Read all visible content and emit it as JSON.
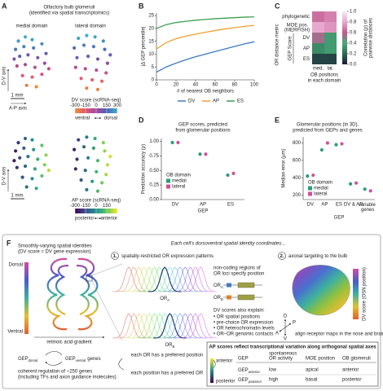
{
  "chart_data": [
    {
      "type": "scatter",
      "panel": "A",
      "panel_title": [
        "Olfactory bulb glomeruli",
        "(identified via spatial transcriptomics)"
      ],
      "title": "medial domain",
      "ylabel": "D-V axis",
      "xlabel": "A-P axis",
      "scale_label": "1 mm",
      "x": [
        0.5,
        1.0,
        1.5,
        0.3,
        0.9,
        1.6,
        2.2,
        0.6,
        1.2,
        1.9,
        2.5,
        0.4,
        1.0,
        1.7,
        2.4,
        0.8,
        1.5,
        2.2,
        1.1,
        1.8,
        2.7,
        0.2
      ],
      "y": [
        3.8,
        4.1,
        3.9,
        3.2,
        3.4,
        3.3,
        3.6,
        2.7,
        2.8,
        2.6,
        2.9,
        2.0,
        2.1,
        1.9,
        2.2,
        1.3,
        1.2,
        1.4,
        0.6,
        0.5,
        1.8,
        2.5
      ],
      "values": [
        260,
        290,
        270,
        190,
        210,
        200,
        230,
        120,
        100,
        70,
        110,
        -20,
        0,
        -50,
        20,
        -150,
        -180,
        -120,
        -250,
        -280,
        -60,
        60
      ]
    },
    {
      "type": "scatter",
      "title": "lateral domain",
      "x": [
        0.6,
        1.2,
        1.8,
        2.4,
        0.3,
        1.0,
        1.7,
        2.5,
        2.9,
        0.5,
        1.3,
        2.0,
        2.7,
        0.4,
        1.1,
        1.9,
        2.6,
        0.8,
        1.6,
        2.3,
        1.2,
        2.0
      ],
      "y": [
        4.0,
        4.2,
        4.1,
        3.8,
        3.3,
        3.5,
        3.4,
        3.2,
        2.8,
        2.6,
        2.7,
        2.5,
        2.2,
        1.9,
        1.8,
        1.7,
        1.5,
        1.1,
        1.0,
        0.9,
        0.4,
        0.3
      ],
      "values": [
        280,
        300,
        270,
        240,
        180,
        200,
        190,
        170,
        120,
        100,
        90,
        70,
        30,
        -30,
        -40,
        -60,
        -90,
        -160,
        -170,
        -190,
        -260,
        -270
      ],
      "colorbar": {
        "label": "DV score (scRNA-seq)",
        "lim": [
          -300,
          300
        ],
        "ticks": [
          -300,
          -150,
          0,
          150,
          300
        ],
        "colors": [
          "#f28e2b",
          "#e15779",
          "#a34a9e",
          "#4f63b8",
          "#3fb0c8"
        ],
        "low_label": "ventral",
        "high_label": "dorsal"
      }
    },
    {
      "type": "scatter",
      "ylabel": "D-V axis",
      "scale_label": "1 mm",
      "x": [
        0.5,
        1.0,
        1.5,
        0.3,
        0.9,
        1.6,
        2.2,
        0.6,
        1.2,
        1.9,
        2.5,
        0.4,
        1.0,
        1.7,
        2.4,
        0.8,
        1.5,
        2.2,
        1.1,
        1.8,
        2.7,
        0.2
      ],
      "y": [
        3.7,
        4.0,
        3.9,
        3.1,
        3.3,
        3.2,
        3.5,
        2.6,
        2.7,
        2.5,
        2.8,
        1.9,
        2.0,
        1.8,
        2.1,
        1.2,
        1.1,
        1.3,
        0.5,
        0.4,
        1.7,
        2.4
      ],
      "values": [
        -200,
        -100,
        0,
        -240,
        -120,
        20,
        140,
        -180,
        -60,
        80,
        200,
        -220,
        -100,
        40,
        180,
        -140,
        0,
        140,
        -80,
        60,
        240,
        -260
      ]
    },
    {
      "type": "scatter",
      "x": [
        0.6,
        1.2,
        1.8,
        2.4,
        0.3,
        1.0,
        1.7,
        2.5,
        2.9,
        0.5,
        1.3,
        2.0,
        2.7,
        0.4,
        1.1,
        1.9,
        2.6,
        0.8,
        1.6,
        2.3,
        1.2,
        2.0
      ],
      "y": [
        3.9,
        4.1,
        4.0,
        3.7,
        3.2,
        3.4,
        3.3,
        3.1,
        2.7,
        2.5,
        2.6,
        2.4,
        2.1,
        1.8,
        1.7,
        1.6,
        1.4,
        1.0,
        0.9,
        0.8,
        0.3,
        0.2
      ],
      "values": [
        -180,
        -60,
        60,
        180,
        -240,
        -100,
        40,
        200,
        260,
        -200,
        -40,
        100,
        240,
        -220,
        -80,
        80,
        220,
        -140,
        20,
        160,
        -60,
        100
      ],
      "colorbar": {
        "label": "AP score (scRNA-seq)",
        "lim": [
          -300,
          300
        ],
        "ticks": [
          -300,
          -150,
          0,
          150
        ],
        "colors": [
          "#440154",
          "#3b528b",
          "#21918c",
          "#5ec962",
          "#fde725"
        ],
        "low_label": "posterior",
        "high_label": "anterior"
      }
    },
    {
      "type": "line",
      "panel": "B",
      "ylabel": "|Δ GEP percentile|",
      "xlabel": "# of nearest OB neighbors",
      "x": [
        0,
        10,
        20,
        30,
        40,
        50,
        60,
        70,
        80,
        90,
        100
      ],
      "xlim": [
        0,
        100
      ],
      "xticks": [
        0,
        20,
        40,
        60,
        80,
        100
      ],
      "ylim": [
        0,
        26
      ],
      "yticks": [
        0,
        5,
        10,
        15,
        20,
        25
      ],
      "series": [
        {
          "name": "DV",
          "color": "#3a7bbf",
          "values": [
            3,
            5,
            6.5,
            7.8,
            9,
            10,
            11,
            12,
            13,
            14,
            14.8
          ]
        },
        {
          "name": "AP",
          "color": "#f0a030",
          "values": [
            12,
            14.5,
            16,
            17,
            17.8,
            18.5,
            19.2,
            19.8,
            20.3,
            20.8,
            21.2
          ]
        },
        {
          "name": "ES",
          "color": "#3aa050",
          "values": [
            20,
            21.5,
            22.3,
            22.8,
            23.2,
            23.5,
            23.8,
            24,
            24.2,
            24.4,
            24.5
          ]
        }
      ]
    },
    {
      "type": "heatmap",
      "panel": "C",
      "rows": [
        "phylogenetic",
        "MOE pos. (MERFISH)",
        "DV",
        "AP",
        "ES"
      ],
      "columns": [
        "med.",
        "lat."
      ],
      "values": [
        [
          0.65,
          0.7
        ],
        [
          0.8,
          0.75
        ],
        [
          0.55,
          0.35
        ],
        [
          0.3,
          0.35
        ],
        [
          0.1,
          0.1
        ]
      ],
      "ylabel": "OR distance metric",
      "group_label": "GEP Score",
      "xlabel": [
        "OB positions",
        "in each domain"
      ],
      "colorbar_label": [
        "Correlation (ρ) of",
        "pairwise distances"
      ],
      "lim": [
        0,
        1
      ],
      "ticks": [
        {
          "value": 0,
          "label": "0.0"
        },
        0.2,
        0.4,
        0.6,
        0.8,
        {
          "value": 1,
          "label": "1.0"
        }
      ],
      "colors": [
        "#1b1b33",
        "#2a6a55",
        "#4caa7a",
        "#c05a90",
        "#e8a8d0",
        "#f4ecf8"
      ]
    },
    {
      "type": "dot",
      "panel": "D",
      "title": [
        "GEP scores, predicted",
        "from glomerular positions"
      ],
      "ylabel": "Prediction accuracy (ρ)",
      "xlabel": "GEP",
      "legend_title": "OB domain",
      "categories": [
        "DV",
        "AP",
        "ES"
      ],
      "ylim": [
        0,
        1.05
      ],
      "yticks": [
        {
          "value": 0,
          "label": "0.00"
        },
        {
          "value": 0.25,
          "label": "0.25"
        },
        {
          "value": 0.5,
          "label": "0.50"
        },
        {
          "value": 0.75,
          "label": "0.75"
        },
        {
          "value": 1,
          "label": "1.00"
        }
      ],
      "series": [
        {
          "name": "medial",
          "color": "#2a9d7a",
          "values": [
            0.98,
            0.78,
            0.42
          ]
        },
        {
          "name": "lateral",
          "color": "#d04e9a",
          "values": [
            0.98,
            0.78,
            0.45
          ]
        }
      ]
    },
    {
      "type": "dot",
      "panel": "E",
      "title": [
        "Glomerular positions (in 3D),",
        "predicted from GEPs and genes"
      ],
      "ylabel": "Median error (μm)",
      "xlabel": "GEP",
      "legend_title": "OB domain",
      "categories": [
        "DV",
        "AP",
        "ES",
        "DV & AP",
        "variable genes"
      ],
      "ylim": [
        150,
        870
      ],
      "yticks": [
        200,
        400,
        600,
        800
      ],
      "series": [
        {
          "name": "medial",
          "color": "#2a9d7a",
          "values": [
            420,
            720,
            780,
            330,
            270
          ]
        },
        {
          "name": "lateral",
          "color": "#d04e9a",
          "values": [
            430,
            800,
            790,
            340,
            250
          ]
        }
      ]
    }
  ],
  "panel_f": {
    "label": "F",
    "left_title": [
      "Smoothly-varying spatial identities",
      "(DV score = DV gene expression)"
    ],
    "header": "Each cell's dorsoventral spatial identity coordinates...",
    "dorsal": "Dorsal",
    "ventral": "Ventral",
    "gradient": "retinoic acid gradient",
    "gep_dorsal": {
      "base": "GEP",
      "sub": "dorsal"
    },
    "gep_ventral": {
      "base": "GEP",
      "sub": "ventral",
      "tail": "genes"
    },
    "regulation": [
      "coherent regulation of ~250 genes",
      "(including TFs and axon guidance molecules)"
    ],
    "step1": {
      "number": "1.",
      "title": "spatially-restricted OR expression patterns"
    },
    "or_a": {
      "base": "OR",
      "sub": "A"
    },
    "or_b": {
      "base": "OR",
      "sub": "B"
    },
    "noncoding": [
      "non-coding regions of",
      "OR loci specify position"
    ],
    "gene_a": {
      "base": "OR",
      "sub": "A"
    },
    "gene_b": {
      "base": "OR",
      "sub": "B"
    },
    "explain_title": "DV scores also explain:",
    "explain": [
      "• OR spatial positions",
      "• pre-choice OR expression",
      "• OR heterochromatin levels",
      "• OR–OR genomic contacts"
    ],
    "preferred": [
      "each OR has a preferred position",
      "each position has a preferred OR"
    ],
    "step2": {
      "number": "2.",
      "title": "axonal targeting to the bulb"
    },
    "bulb_colorbar": "DV score (OSN position)",
    "axes": [
      "D",
      "P",
      "A",
      "V"
    ],
    "align": "align receptor maps in the nose and brain",
    "table": {
      "caption": "AP scores reflect transcriptional variation along orthogonal spatial axes",
      "axis": [
        "anterior",
        "posterior"
      ],
      "headers": [
        [
          "GEP"
        ],
        [
          "spontaneous",
          "OR activity"
        ],
        [
          "MOE position"
        ],
        [
          "OB glomeruli"
        ]
      ],
      "rows": [
        [
          {
            "base": "GEP",
            "sub": "anterior"
          },
          "low",
          "apical",
          "anterior"
        ],
        [
          {
            "base": "GEP",
            "sub": "posterior"
          },
          "high",
          "basal",
          "posterior"
        ]
      ]
    }
  }
}
